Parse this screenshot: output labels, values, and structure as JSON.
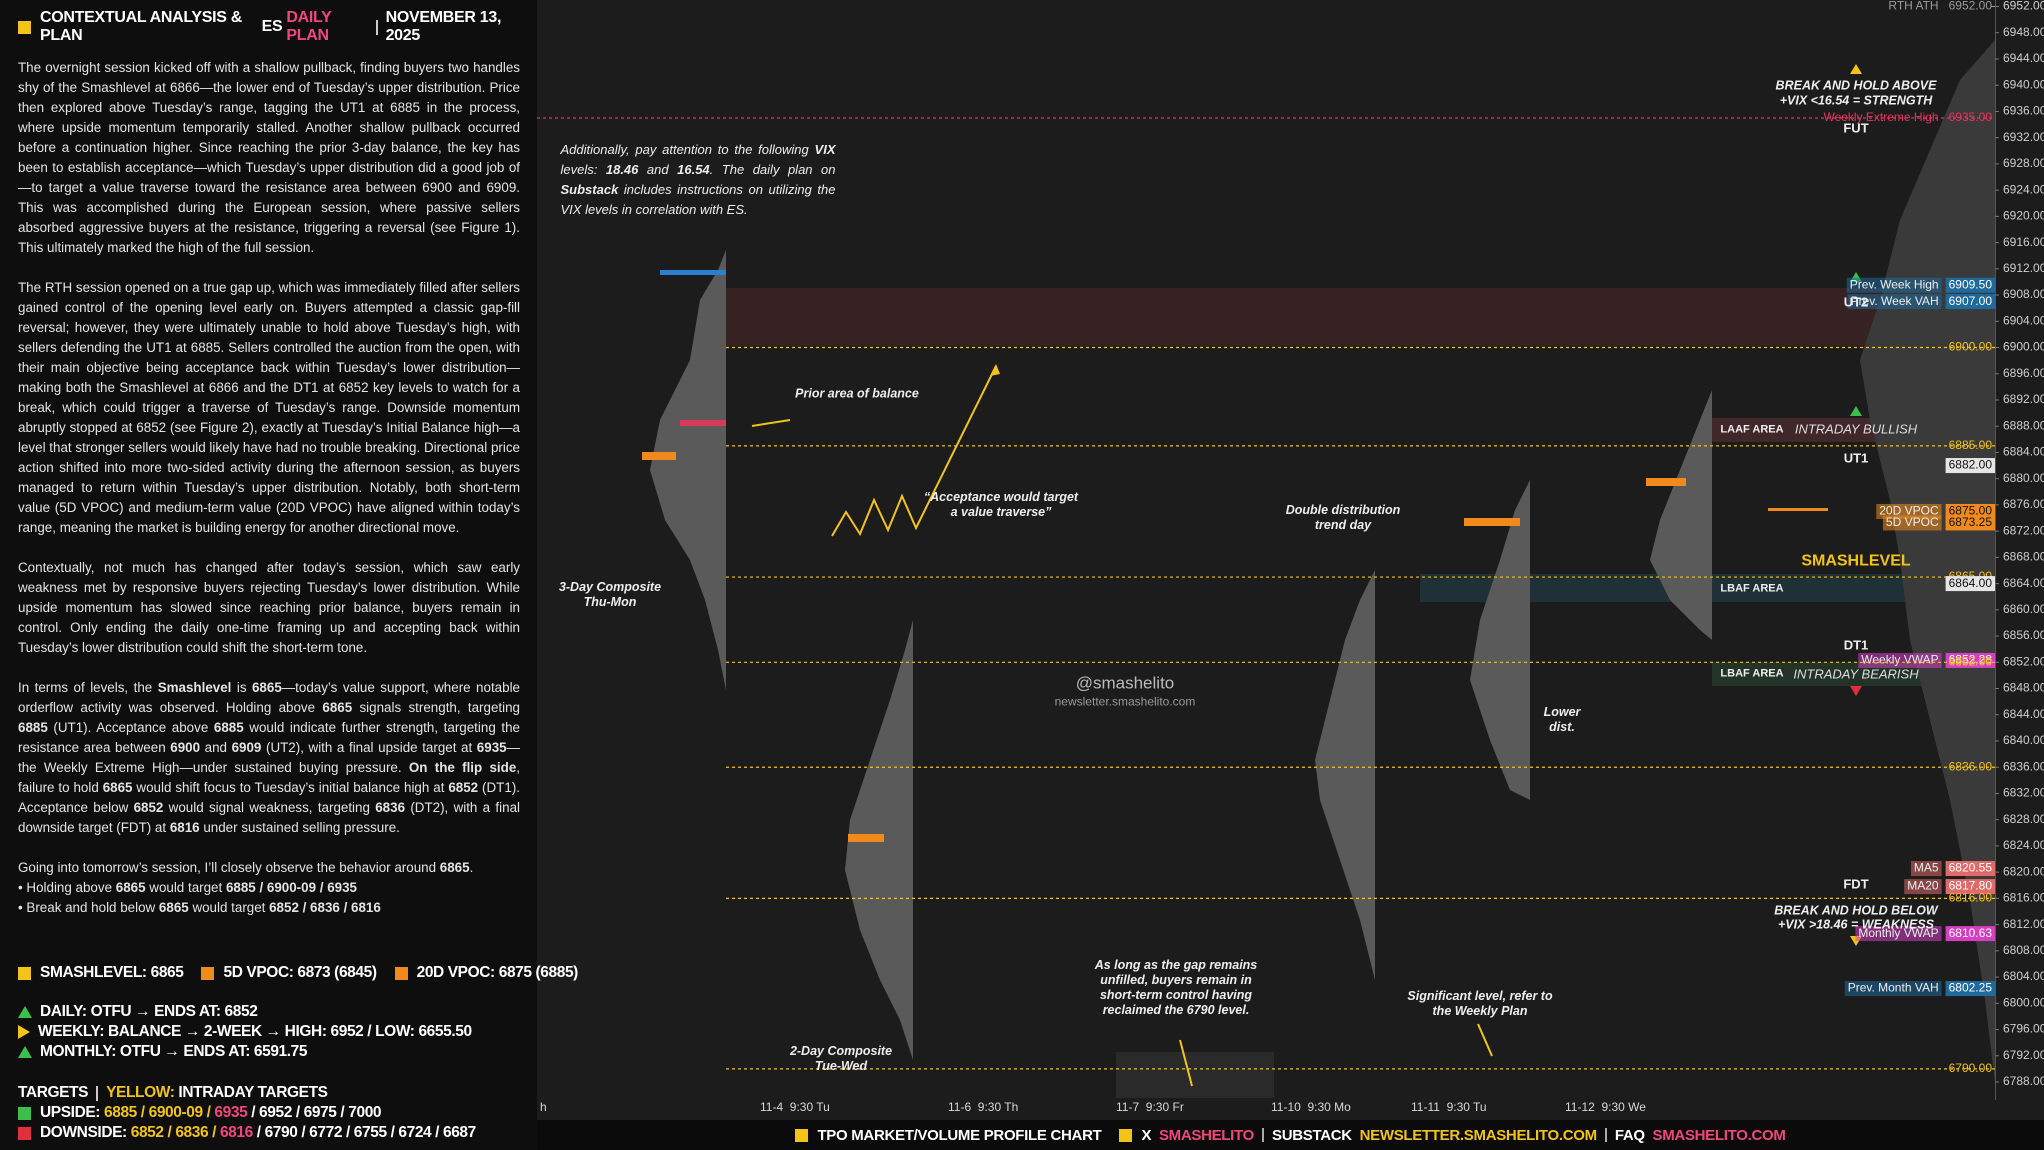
{
  "left_panel": {
    "title": "CONTEXTUAL ANALYSIS & PLAN",
    "ticker": "ES",
    "plan": "DAILY PLAN",
    "date": "NOVEMBER 13, 2025",
    "paragraphs": [
      "The overnight session kicked off with a shallow pullback, finding buyers two handles shy of the Smashlevel at 6866—the lower end of Tuesday’s upper distribution. Price then explored above Tuesday’s range, tagging the UT1 at 6885 in the process, where upside momentum temporarily stalled. Another shallow pullback occurred before a continuation higher. Since reaching the prior 3-day balance, the key has been to establish acceptance—which Tuesday’s upper distribution did a good job of—to target a value traverse toward the resistance area between 6900 and 6909. This was accomplished during the European session, where passive sellers absorbed aggressive buyers at the resistance, triggering a reversal (see Figure 1). This ultimately marked the high of the full session.",
      "The RTH session opened on a true gap up, which was immediately filled after sellers gained control of the opening level early on. Buyers attempted a classic gap-fill reversal; however, they were ultimately unable to hold above Tuesday’s high, with sellers defending the UT1 at 6885. Sellers controlled the auction from the open, with their main objective being acceptance back within Tuesday’s lower distribution—making both the Smashlevel at 6866 and the DT1 at 6852 key levels to watch for a break, which could trigger a traverse of Tuesday’s range. Downside momentum abruptly stopped at 6852 (see Figure 2), exactly at Tuesday’s Initial Balance high—a level that stronger sellers would likely have had no trouble breaking. Directional price action shifted into more two-sided activity during the afternoon session, as buyers managed to return within Tuesday’s upper distribution. Notably, both short-term value (5D VPOC) and medium-term value (20D VPOC) have aligned within today’s range, meaning the market is building energy for another directional move.",
      "Contextually, not much has changed after today’s session, which saw early weakness met by responsive buyers rejecting Tuesday’s lower distribution. While upside momentum has slowed since reaching prior balance, buyers remain in control. Only ending the daily one-time framing up and accepting back within Tuesday’s lower distribution could shift the short-term tone.",
      [
        "In terms of levels, the ",
        {
          "bold": "Smashlevel"
        },
        " is ",
        {
          "bold": "6865"
        },
        "—today’s value support, where notable orderflow activity was observed. Holding above ",
        {
          "bold": "6865"
        },
        " signals strength, targeting ",
        {
          "bold": "6885"
        },
        " (UT1). Acceptance above ",
        {
          "bold": "6885"
        },
        " would indicate further strength, targeting the resistance area between ",
        {
          "bold": "6900"
        },
        " and ",
        {
          "bold": "6909"
        },
        " (UT2), with a final upside target at ",
        {
          "bold": "6935"
        },
        "—the Weekly Extreme High—under sustained buying pressure. ",
        {
          "bold": "On the flip side"
        },
        ", failure to hold ",
        {
          "bold": "6865"
        },
        " would shift focus to Tuesday’s initial balance high at ",
        {
          "bold": "6852"
        },
        " (DT1). Acceptance below ",
        {
          "bold": "6852"
        },
        " would signal weakness, targeting ",
        {
          "bold": "6836"
        },
        " (DT2), with a final downside target (FDT) at ",
        {
          "bold": "6816"
        },
        " under sustained selling pressure."
      ]
    ],
    "closing": [
      [
        "Going into tomorrow’s session, I’ll closely observe the behavior around ",
        {
          "bold": "6865"
        },
        "."
      ],
      [
        "• Holding above ",
        {
          "bold": "6865"
        },
        " would target ",
        {
          "bold": "6885 / 6900-09 / 6935"
        }
      ],
      [
        "• Break and hold below ",
        {
          "bold": "6865"
        },
        " would target ",
        {
          "bold": "6852 / 6836 / 6816"
        }
      ]
    ]
  },
  "summary": {
    "smashlevel": "SMASHLEVEL: 6865",
    "vpoc5": "5D VPOC: 6873 (6845)",
    "vpoc20": "20D VPOC: 6875 (6885)",
    "daily": "DAILY: OTFU → ENDS AT: 6852",
    "weekly": "WEEKLY: BALANCE → 2-WEEK → HIGH: 6952 / LOW: 6655.50",
    "monthly": "MONTHLY: OTFU → ENDS AT: 6591.75",
    "targets": "TARGETS",
    "yellow": "YELLOW:",
    "intraday": "INTRADAY TARGETS",
    "upside": [
      "UPSIDE:",
      "6885 / 6900-09 /",
      "6935",
      "/ 6952 / 6975 / 7000"
    ],
    "downside": [
      "DOWNSIDE:",
      "6852 / 6836 /",
      "6816",
      "/ 6790 / 6772 / 6755 / 6724 / 6687"
    ]
  },
  "footer": [
    "TPO MARKET/VOLUME PROFILE CHART",
    "X",
    "SMASHELITO",
    "SUBSTACK",
    "NEWSLETTER.SMASHELITO.COM",
    "FAQ",
    "SMASHELITO.COM"
  ],
  "chart_data": {
    "type": "profile",
    "ylim": [
      6788,
      6952
    ],
    "yticks": [
      {
        "value": 6952,
        "label": "6952.00"
      },
      {
        "value": 6948,
        "label": "6948.00"
      },
      {
        "value": 6944,
        "label": "6944.00"
      },
      {
        "value": 6940,
        "label": "6940.00"
      },
      {
        "value": 6936,
        "label": "6936.00"
      },
      {
        "value": 6932,
        "label": "6932.00"
      },
      {
        "value": 6928,
        "label": "6928.00"
      },
      {
        "value": 6924,
        "label": "6924.00"
      },
      {
        "value": 6920,
        "label": "6920.00"
      },
      {
        "value": 6916,
        "label": "6916.00"
      },
      {
        "value": 6912,
        "label": "6912.00"
      },
      {
        "value": 6908,
        "label": "6908.00"
      },
      {
        "value": 6904,
        "label": "6904.00"
      },
      {
        "value": 6900,
        "label": "6900.00"
      },
      {
        "value": 6896,
        "label": "6896.00"
      },
      {
        "value": 6892,
        "label": "6892.00"
      },
      {
        "value": 6888,
        "label": "6888.00"
      },
      {
        "value": 6884,
        "label": "6884.00"
      },
      {
        "value": 6880,
        "label": "6880.00"
      },
      {
        "value": 6876,
        "label": "6876.00"
      },
      {
        "value": 6872,
        "label": "6872.00"
      },
      {
        "value": 6868,
        "label": "6868.00"
      },
      {
        "value": 6864,
        "label": "6864.00"
      },
      {
        "value": 6860,
        "label": "6860.00"
      },
      {
        "value": 6856,
        "label": "6856.00"
      },
      {
        "value": 6852,
        "label": "6852.00"
      },
      {
        "value": 6848,
        "label": "6848.00"
      },
      {
        "value": 6844,
        "label": "6844.00"
      },
      {
        "value": 6840,
        "label": "6840.00"
      },
      {
        "value": 6836,
        "label": "6836.00"
      },
      {
        "value": 6832,
        "label": "6832.00"
      },
      {
        "value": 6828,
        "label": "6828.00"
      },
      {
        "value": 6824,
        "label": "6824.00"
      },
      {
        "value": 6820,
        "label": "6820.00"
      },
      {
        "value": 6816,
        "label": "6816.00"
      },
      {
        "value": 6812,
        "label": "6812.00"
      },
      {
        "value": 6808,
        "label": "6808.00"
      },
      {
        "value": 6804,
        "label": "6804.00"
      },
      {
        "value": 6800,
        "label": "6800.00"
      },
      {
        "value": 6796,
        "label": "6796.00"
      },
      {
        "value": 6792,
        "label": "6792.00"
      },
      {
        "value": 6788,
        "label": "6788.00"
      }
    ],
    "levels": [
      {
        "name": "RTH ATH",
        "value": 6952,
        "label": "6952.00",
        "color": "#9a9a9a",
        "box": false,
        "line": false
      },
      {
        "name": "Weekly Extreme High",
        "value": 6935,
        "label": "6935.00",
        "color": "#e8335e",
        "box": false,
        "line": true
      },
      {
        "name": "Prev. Week High",
        "value": 6909.5,
        "label": "6909.50",
        "color": "#1f6a9c",
        "box": true,
        "line": false
      },
      {
        "name": "Prev. Week VAH",
        "value": 6907,
        "label": "6907.00",
        "color": "#1f6a9c",
        "box": true,
        "line": false
      },
      {
        "value": 6900,
        "label": "6900.00",
        "color": "#f2c318",
        "box": false,
        "line": true
      },
      {
        "value": 6885,
        "label": "6885.00",
        "color": "#f2c318",
        "box": false,
        "line": true
      },
      {
        "value": 6882,
        "label": "6882.00",
        "color": "#e6e6e6",
        "box": true,
        "line": false
      },
      {
        "name": "20D VPOC",
        "value": 6875,
        "label": "6875.00",
        "color": "#f08a1c",
        "box": true,
        "line": false
      },
      {
        "name": "5D VPOC",
        "value": 6873.25,
        "label": "6873.25",
        "color": "#f08a1c",
        "box": true,
        "line": false
      },
      {
        "value": 6865,
        "label": "6865.00",
        "color": "#f2c318",
        "box": false,
        "line": true
      },
      {
        "value": 6864,
        "label": "6864.00",
        "color": "#e6e6e6",
        "box": true,
        "line": false
      },
      {
        "name": "Weekly VWAP",
        "value": 6852.28,
        "label": "6852.28",
        "color": "#d63fc4",
        "box": true,
        "line": false
      },
      {
        "value": 6852,
        "label": "6852.00",
        "color": "#f2c318",
        "box": false,
        "line": true
      },
      {
        "value": 6836,
        "label": "6836.00",
        "color": "#f2c318",
        "box": false,
        "line": true
      },
      {
        "name": "MA5",
        "value": 6820.55,
        "label": "6820.55",
        "color": "#e06a6a",
        "box": true,
        "line": false
      },
      {
        "name": "MA20",
        "value": 6817.8,
        "label": "6817.80",
        "color": "#e06a6a",
        "box": true,
        "line": false
      },
      {
        "value": 6816,
        "label": "6816.00",
        "color": "#f2c318",
        "box": false,
        "line": true
      },
      {
        "name": "Monthly VWAP",
        "value": 6810.63,
        "label": "6810.63",
        "color": "#d63fc4",
        "box": true,
        "line": false
      },
      {
        "name": "Prev. Month VAH",
        "value": 6802.25,
        "label": "6802.25",
        "color": "#1f6a9c",
        "box": true,
        "line": false
      },
      {
        "value": 6790,
        "label": "6790.00",
        "color": "#f2c318",
        "box": false,
        "line": true
      }
    ],
    "x_labels": [
      "h",
      "11-4  9:30 Tu",
      "11-6  9:30 Th",
      "11-7  9:30 Fr",
      "11-10  9:30 Mo",
      "11-11  9:30 Tu",
      "11-12  9:30 We"
    ],
    "annotations": [
      [
        "Additionally, pay attention to the following ",
        {
          "bold": "VIX"
        },
        " levels: ",
        {
          "bold": "18.46"
        },
        " and ",
        {
          "bold": "16.54"
        },
        ". The daily plan on ",
        {
          "bold": "Substack"
        },
        " includes instructions on utilizing the VIX levels in correlation with ES."
      ],
      "Prior area of balance",
      "“Acceptance would target a value traverse”",
      "3-Day Composite Thu-Mon",
      "Double distribution trend day",
      "@smashelito",
      "newsletter.smashelito.com",
      "Lower dist.",
      "As long as the gap remains unfilled, buyers remain in short-term control having reclaimed the 6790 level.",
      "Significant level, refer to the Weekly Plan",
      "2-Day Composite Tue-Wed",
      "BREAK AND HOLD ABOVE",
      [
        {
          "bold": "+VIX <16.54"
        },
        " = STRENGTH"
      ],
      "BREAK AND HOLD BELOW",
      [
        {
          "bold": "+VIX >18.46"
        },
        " = WEAKNESS"
      ],
      "FUT",
      "UT2",
      "UT1",
      "SMASHLEVEL",
      "DT1",
      "FDT",
      "LAAF AREA",
      "INTRADAY BULLISH",
      "LBAF AREA",
      "LBAF AREA",
      "INTRADAY BEARISH"
    ]
  }
}
